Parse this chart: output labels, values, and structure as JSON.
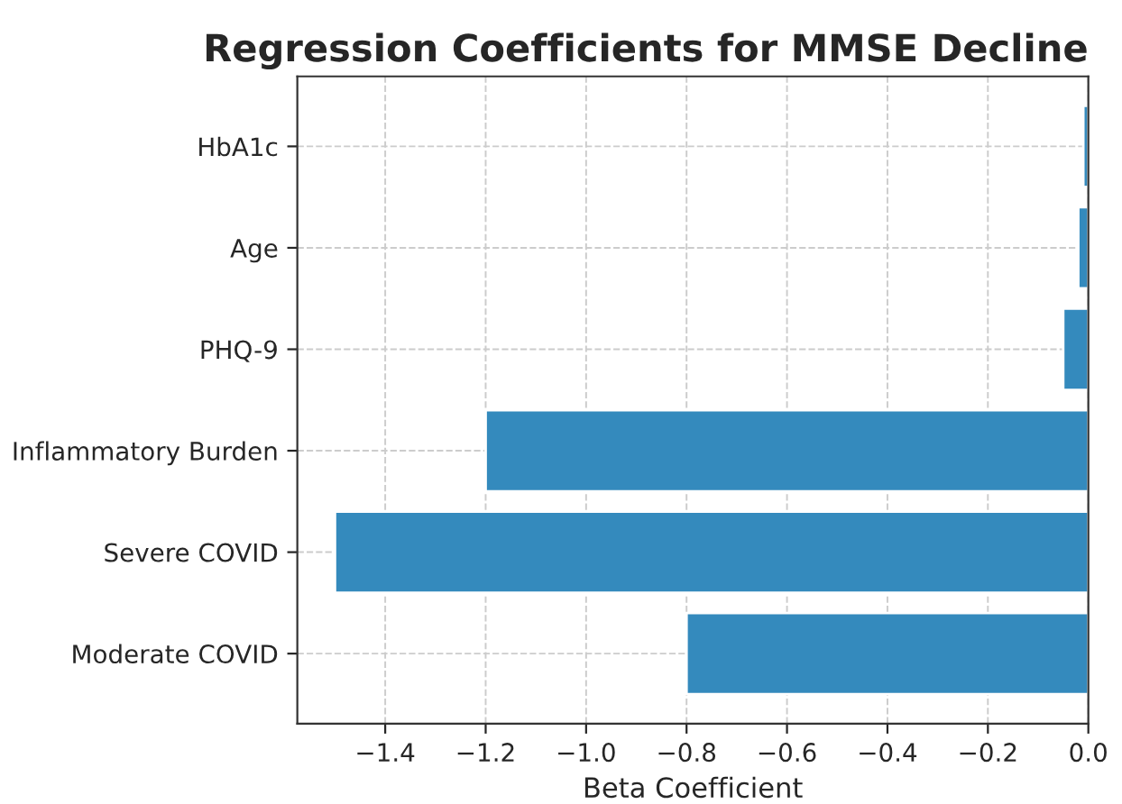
{
  "chart_data": {
    "type": "bar",
    "orientation": "horizontal",
    "title": "Regression Coefficients for MMSE Decline",
    "xlabel": "Beta Coefficient",
    "categories": [
      "HbA1c",
      "Age",
      "PHQ-9",
      "Inflammatory Burden",
      "Severe COVID",
      "Moderate COVID"
    ],
    "values": [
      -0.01,
      -0.02,
      -0.05,
      -1.2,
      -1.5,
      -0.8
    ],
    "color": "#348abd",
    "xlim": [
      -1.575,
      0
    ],
    "xticks": [
      -1.4,
      -1.2,
      {
        "value": -1,
        "label": "−1.0"
      },
      -0.8,
      -0.6,
      -0.4,
      -0.2,
      {
        "value": 0,
        "label": "0.0"
      }
    ],
    "grid": true
  }
}
